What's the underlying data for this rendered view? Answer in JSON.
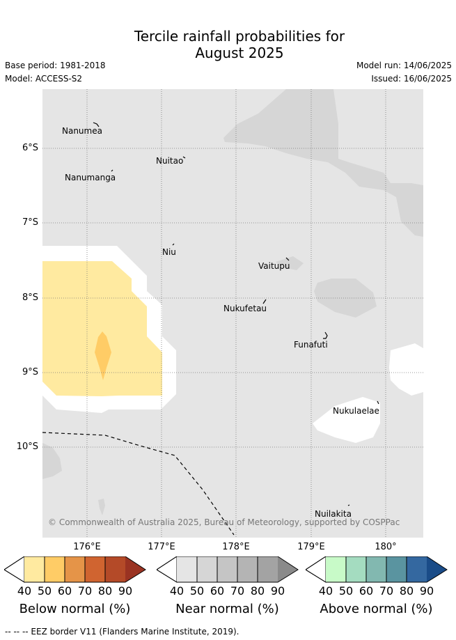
{
  "header": {
    "title_line1": "Tercile rainfall probabilities for",
    "title_line2": "August 2025",
    "base_period": "Base period: 1981-2018",
    "model": "Model: ACCESS-S2",
    "model_run": "Model run: 14/06/2025",
    "issued": "Issued: 16/06/2025"
  },
  "map": {
    "lat_labels": [
      "6°S",
      "7°S",
      "8°S",
      "9°S",
      "10°S"
    ],
    "lon_labels": [
      "176°E",
      "177°E",
      "178°E",
      "179°E",
      "180°"
    ],
    "islands": [
      "Nanumea",
      "Nuitao",
      "Nanumanga",
      "Niu",
      "Vaitupu",
      "Nukufetau",
      "Funafuti",
      "Nukulaelae",
      "Nuilakita"
    ],
    "copyright": "© Commonwealth of Australia 2025, Bureau of Meteorology, supported by COSPPac",
    "colors": {
      "ocean_near_normal": "#e5e5e5",
      "near_normal_50": "#d6d6d6",
      "below_40": "#ffeaa0",
      "below_50": "#ffcc66",
      "no_signal": "#ffffff"
    }
  },
  "legends": [
    {
      "title": "Below normal (%)",
      "ticks": [
        "40",
        "50",
        "60",
        "70",
        "80",
        "90"
      ],
      "colors": [
        "#ffeaa0",
        "#ffcc66",
        "#e59448",
        "#d06430",
        "#b44a28",
        "#9a3322"
      ]
    },
    {
      "title": "Near normal (%)",
      "ticks": [
        "40",
        "50",
        "60",
        "70",
        "80",
        "90"
      ],
      "colors": [
        "#e5e5e5",
        "#d6d6d6",
        "#c5c5c5",
        "#b4b4b4",
        "#a3a3a3",
        "#8a8a8a"
      ]
    },
    {
      "title": "Above normal (%)",
      "ticks": [
        "40",
        "50",
        "60",
        "70",
        "80",
        "90"
      ],
      "colors": [
        "#c8fac8",
        "#a4dcc0",
        "#82b8b0",
        "#5a94a0",
        "#3468a0",
        "#1a4c88"
      ]
    }
  ],
  "footer": {
    "eez_note": "--  --  -- EEZ border V11 (Flanders Marine Institute, 2019)."
  }
}
